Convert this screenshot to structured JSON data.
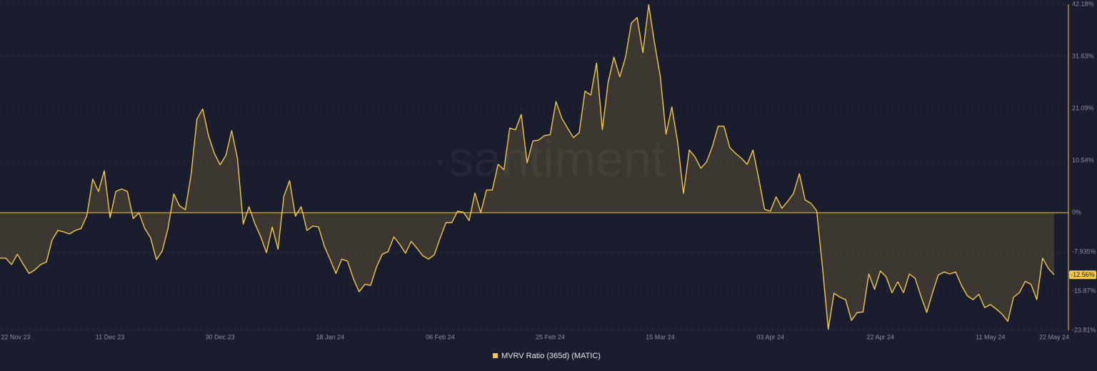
{
  "chart_data": {
    "type": "line",
    "watermark": "·santiment",
    "categories": [
      "22 Nov 23",
      null,
      null,
      null,
      null,
      null,
      null,
      null,
      null,
      null,
      null,
      null,
      null,
      null,
      null,
      null,
      null,
      null,
      null,
      "11 Dec 23",
      null,
      null,
      null,
      null,
      null,
      null,
      null,
      null,
      null,
      null,
      null,
      null,
      null,
      null,
      null,
      null,
      null,
      null,
      "30 Dec 23",
      null,
      null,
      null,
      null,
      null,
      null,
      null,
      null,
      null,
      null,
      null,
      null,
      null,
      null,
      null,
      null,
      null,
      null,
      "18 Jan 24",
      null,
      null,
      null,
      null,
      null,
      null,
      null,
      null,
      null,
      null,
      null,
      null,
      null,
      null,
      null,
      null,
      null,
      null,
      "06 Feb 24",
      null,
      null,
      null,
      null,
      null,
      null,
      null,
      null,
      null,
      null,
      null,
      null,
      null,
      null,
      null,
      null,
      null,
      null,
      "25 Feb 24",
      null,
      null,
      null,
      null,
      null,
      null,
      null,
      null,
      null,
      null,
      null,
      null,
      null,
      null,
      null,
      null,
      null,
      null,
      "15 Mar 24",
      null,
      null,
      null,
      null,
      null,
      null,
      null,
      null,
      null,
      null,
      null,
      null,
      null,
      null,
      null,
      null,
      null,
      null,
      "03 Apr 24",
      null,
      null,
      null,
      null,
      null,
      null,
      null,
      null,
      null,
      null,
      null,
      null,
      null,
      null,
      null,
      null,
      null,
      null,
      "22 Apr 24",
      null,
      null,
      null,
      null,
      null,
      null,
      null,
      null,
      null,
      null,
      null,
      null,
      null,
      null,
      null,
      null,
      null,
      null,
      "11 May 24",
      null,
      null,
      null,
      null,
      null,
      null,
      null,
      null,
      null,
      null,
      "22 May 24"
    ],
    "series": [
      {
        "name": "MVRV Ratio (365d) (MATIC)",
        "color": "#f3c94a",
        "values": [
          -9.2,
          -9.2,
          -10.5,
          -8.4,
          -10.4,
          -12.3,
          -11.6,
          -10.5,
          -10.0,
          -5.5,
          -3.6,
          -3.9,
          -4.3,
          -3.6,
          -3.2,
          -0.6,
          6.8,
          4.3,
          8.5,
          -1.0,
          4.3,
          4.8,
          4.3,
          -1.2,
          0,
          -3.2,
          -5.1,
          -9.5,
          -7.8,
          -3.2,
          3.8,
          1.4,
          0.6,
          7.7,
          18.9,
          21.0,
          15.6,
          12.0,
          9.7,
          11.6,
          16.6,
          11.0,
          -2.3,
          1.2,
          -2.2,
          -4.8,
          -8.1,
          -2.9,
          -7.4,
          3.3,
          6.5,
          -0.7,
          1.2,
          -3.6,
          -2.7,
          -2.9,
          -6.8,
          -9.5,
          -12.3,
          -9.4,
          -9.8,
          -13.3,
          -16.0,
          -14.5,
          -14.7,
          -11.0,
          -8.4,
          -7.9,
          -4.9,
          -6.4,
          -8.2,
          -5.8,
          -7.2,
          -8.7,
          -9.4,
          -8.5,
          -5.1,
          -2.0,
          -2.0,
          0.3,
          0.1,
          -1.6,
          4.0,
          0,
          4.6,
          4.6,
          9.8,
          8.7,
          17.1,
          16.8,
          19.9,
          10.1,
          14.5,
          14.7,
          15.6,
          15.8,
          22.5,
          19.1,
          17.1,
          15.2,
          16.2,
          24.6,
          23.8,
          30.3,
          16.8,
          26.4,
          31.5,
          27.5,
          31.5,
          38.4,
          39.5,
          32.4,
          42.1,
          34.4,
          27.6,
          15.9,
          21.4,
          14.2,
          3.9,
          12.7,
          11.3,
          9.0,
          10.3,
          13.4,
          17.5,
          17.5,
          13.2,
          12.0,
          11.0,
          9.8,
          12.7,
          6.9,
          0.7,
          0.3,
          3.2,
          0.9,
          2.3,
          3.9,
          7.9,
          2.6,
          1.9,
          0.4,
          -11.0,
          -23.6,
          -16.3,
          -17.1,
          -17.6,
          -21.8,
          -20.2,
          -20.1,
          -12.4,
          -15.5,
          -11.8,
          -13.0,
          -16.2,
          -14.0,
          -16.2,
          -12.4,
          -13.3,
          -16.9,
          -20.2,
          -16.2,
          -12.6,
          -12.0,
          -12.4,
          -12.0,
          -14.7,
          -16.8,
          -17.6,
          -16.5,
          -19.2,
          -18.6,
          -19.5,
          -20.5,
          -22.0,
          -17.1,
          -16.2,
          -13.9,
          -14.5,
          -17.6,
          -9.2,
          -11.3,
          -12.56
        ],
        "value_labels": [
          null,
          null,
          null,
          null,
          null,
          null,
          null,
          null,
          null,
          null,
          null,
          null,
          null,
          null,
          null,
          null,
          null,
          null,
          null,
          null,
          null,
          null,
          null,
          null,
          null,
          null,
          null,
          null,
          null,
          null,
          null,
          null,
          null,
          null,
          null,
          null,
          null,
          null,
          null,
          null,
          null,
          null,
          null,
          null,
          null,
          null,
          null,
          null,
          null,
          null,
          null,
          null,
          null,
          null,
          null,
          null,
          null,
          null,
          null,
          null,
          null,
          null,
          null,
          null,
          null,
          null,
          null,
          null,
          null,
          null,
          null,
          null,
          null,
          null,
          null,
          null,
          null,
          null,
          null,
          null,
          null,
          null,
          null,
          null,
          null,
          null,
          null,
          null,
          null,
          null,
          null,
          null,
          null,
          null,
          null,
          null,
          null,
          null,
          null,
          null,
          null,
          null,
          null,
          null,
          null,
          null,
          null,
          null,
          null,
          null,
          null,
          null,
          null,
          null,
          null,
          null,
          null,
          null,
          null,
          null,
          null,
          null,
          null,
          null,
          null,
          null,
          null,
          null,
          null,
          null,
          null,
          null,
          null,
          null,
          null,
          null,
          null,
          null,
          null,
          null,
          null,
          null,
          null,
          null,
          null,
          null,
          null,
          null,
          null,
          null,
          null,
          null,
          null,
          null,
          null,
          null,
          null,
          null,
          null,
          null,
          null,
          null,
          null,
          null,
          null,
          null,
          null,
          null,
          null,
          null,
          null,
          null,
          null,
          null,
          null,
          null,
          null,
          null,
          null,
          null,
          null,
          null,
          "-12.56%"
        ]
      }
    ],
    "ylim": [
      -23.81,
      42.18
    ],
    "yticks": [
      {
        "value": 42.18,
        "label": "42.18%"
      },
      {
        "value": 31.63,
        "label": "31.63%"
      },
      {
        "value": 21.09,
        "label": "21.09%"
      },
      {
        "value": 10.54,
        "label": "10.54%"
      },
      {
        "value": 0,
        "label": "0%"
      },
      {
        "value": -7.935,
        "label": "-7.935%"
      },
      {
        "value": -15.87,
        "label": "-15.87%"
      },
      {
        "value": -23.81,
        "label": "-23.81%"
      }
    ],
    "grid": true
  }
}
